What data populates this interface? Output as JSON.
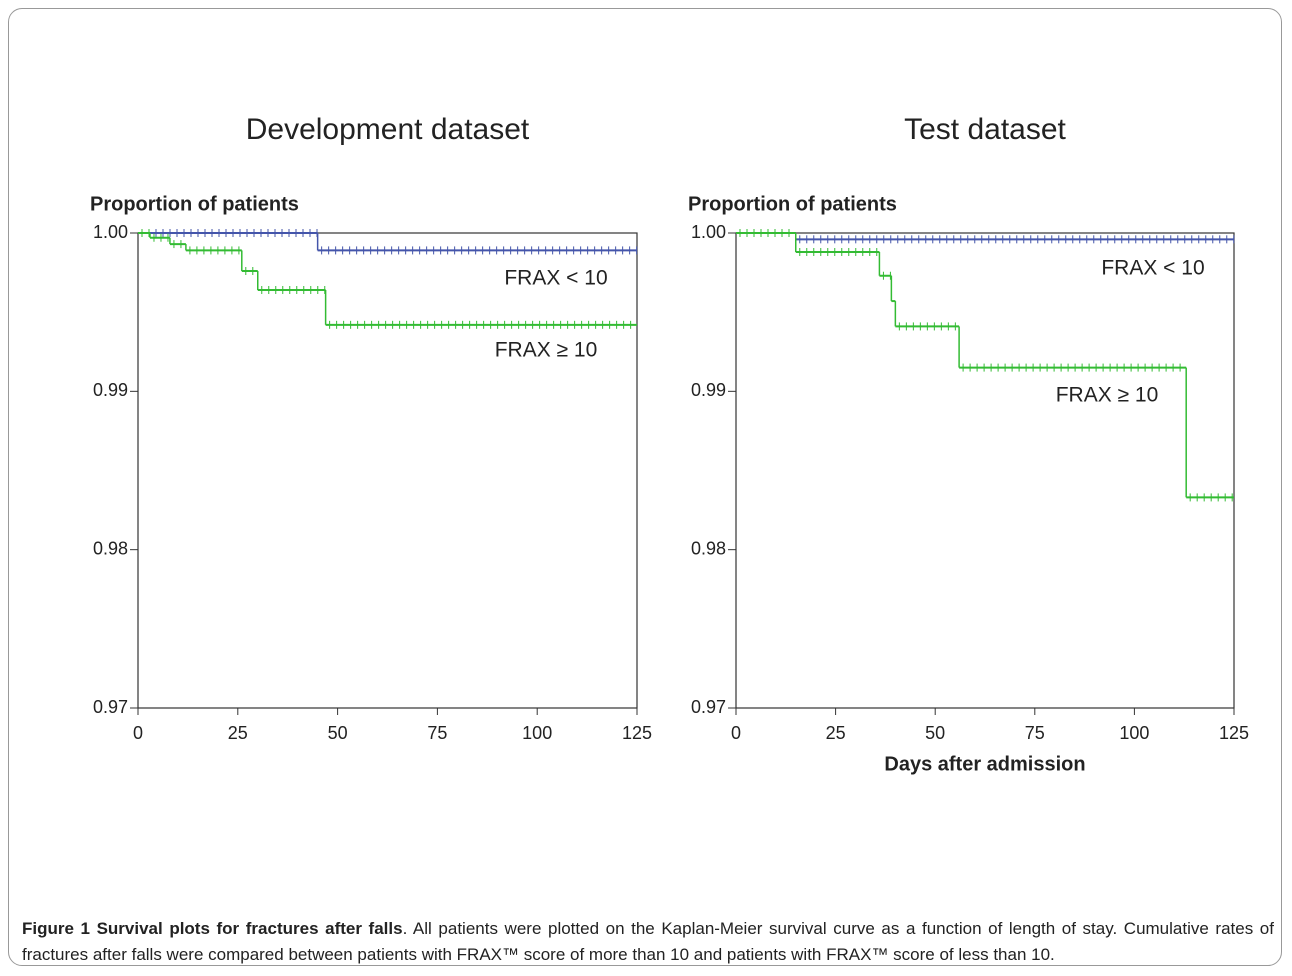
{
  "chart_data": [
    {
      "type": "line",
      "title": "Development dataset",
      "y_label": "Proportion of patients",
      "xlim": [
        0,
        125
      ],
      "xticks": [
        0,
        25,
        50,
        75,
        100,
        125
      ],
      "ylim": [
        0.97,
        1
      ],
      "yticks": [
        0.97,
        0.98,
        0.99,
        {
          "value": 1,
          "label": "1.00"
        }
      ],
      "series": [
        {
          "name": "FRAX < 10",
          "color": "#4455aa",
          "x": [
            0,
            45,
            125
          ],
          "values": [
            1,
            0.9989,
            0.9989
          ]
        },
        {
          "name": "FRAX ≥ 10",
          "color": "#33bb33",
          "x": [
            0,
            3,
            8,
            12,
            26,
            30,
            47,
            125
          ],
          "values": [
            1,
            0.9997,
            0.9993,
            0.9989,
            0.9976,
            0.9964,
            0.9942,
            0.9942
          ]
        }
      ]
    },
    {
      "type": "line",
      "title": "Test dataset",
      "y_label": "Proportion of patients",
      "x_label": "Days after admission",
      "xlim": [
        0,
        125
      ],
      "xticks": [
        0,
        25,
        50,
        75,
        100,
        125
      ],
      "ylim": [
        0.97,
        1
      ],
      "yticks": [
        0.97,
        0.98,
        0.99,
        {
          "value": 1,
          "label": "1.00"
        }
      ],
      "series": [
        {
          "name": "FRAX < 10",
          "color": "#4455aa",
          "x": [
            0,
            15,
            125
          ],
          "values": [
            1,
            0.9996,
            0.9996
          ]
        },
        {
          "name": "FRAX ≥ 10",
          "color": "#33bb33",
          "x": [
            0,
            15,
            36,
            39,
            40,
            56,
            113,
            125
          ],
          "values": [
            1,
            0.9988,
            0.9973,
            0.9957,
            0.9941,
            0.9915,
            0.9833,
            0.9833
          ]
        }
      ]
    }
  ],
  "caption": {
    "label": "Figure 1 Survival plots for fractures after falls",
    "text": ". All patients were plotted on the Kaplan-Meier survival curve as a function of length of stay. Cumulative rates of fractures after falls were compared between patients with FRAX™ score of more than 10 and patients with FRAX™ score of less than 10."
  }
}
